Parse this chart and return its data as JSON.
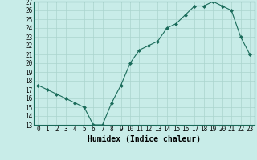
{
  "xlabel": "Humidex (Indice chaleur)",
  "ylabel": "",
  "x": [
    0,
    1,
    2,
    3,
    4,
    5,
    6,
    7,
    8,
    9,
    10,
    11,
    12,
    13,
    14,
    15,
    16,
    17,
    18,
    19,
    20,
    21,
    22,
    23
  ],
  "y": [
    17.5,
    17.0,
    16.5,
    16.0,
    15.5,
    15.0,
    13.0,
    13.0,
    15.5,
    17.5,
    20.0,
    21.5,
    22.0,
    22.5,
    24.0,
    24.5,
    25.5,
    26.5,
    26.5,
    27.0,
    26.5,
    26.0,
    23.0,
    21.0
  ],
  "line_color": "#1a6b5a",
  "marker": "D",
  "marker_size": 2,
  "bg_color": "#c8ece8",
  "grid_color": "#aad4ce",
  "ylim": [
    13,
    27
  ],
  "xlim": [
    -0.5,
    23.5
  ],
  "yticks": [
    13,
    14,
    15,
    16,
    17,
    18,
    19,
    20,
    21,
    22,
    23,
    24,
    25,
    26,
    27
  ],
  "xticks": [
    0,
    1,
    2,
    3,
    4,
    5,
    6,
    7,
    8,
    9,
    10,
    11,
    12,
    13,
    14,
    15,
    16,
    17,
    18,
    19,
    20,
    21,
    22,
    23
  ],
  "tick_fontsize": 5.5,
  "label_fontsize": 7.0
}
